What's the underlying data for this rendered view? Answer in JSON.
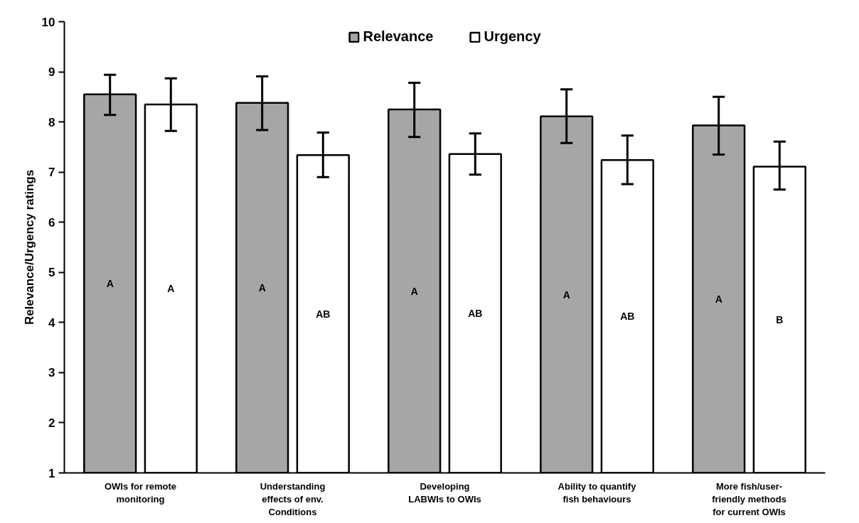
{
  "chart_data": {
    "type": "bar",
    "ylabel": "Relevance/Urgency ratings",
    "categories": [
      "OWIs for remote\nmonitoring",
      "Understanding\neffects of env.\nConditions",
      "Developing\nLABWIs to OWIs",
      "Ability to quantify\nfish behaviours",
      "More fish/user-\nfriendly methods\nfor current OWIs"
    ],
    "series": [
      {
        "name": "Relevance",
        "color": "#a6a6a6",
        "values": [
          8.55,
          8.38,
          8.25,
          8.11,
          7.93
        ],
        "errors": [
          [
            8.14,
            8.94
          ],
          [
            7.84,
            8.91
          ],
          [
            7.7,
            8.78
          ],
          [
            7.58,
            8.65
          ],
          [
            7.35,
            8.5
          ]
        ],
        "value_labels": [
          "A",
          "A",
          "A",
          "A",
          "A"
        ]
      },
      {
        "name": "Urgency",
        "color": "#ffffff",
        "values": [
          8.35,
          7.34,
          7.36,
          7.24,
          7.11
        ],
        "errors": [
          [
            7.82,
            8.87
          ],
          [
            6.9,
            7.79
          ],
          [
            6.95,
            7.77
          ],
          [
            6.76,
            7.73
          ],
          [
            6.65,
            7.61
          ]
        ],
        "value_labels": [
          "A",
          "AB",
          "AB",
          "AB",
          "B"
        ]
      }
    ],
    "ylim": [
      1,
      10
    ],
    "yticks": [
      1,
      2,
      3,
      4,
      5,
      6,
      7,
      8,
      9,
      10
    ],
    "grid": false,
    "legend": "top"
  }
}
